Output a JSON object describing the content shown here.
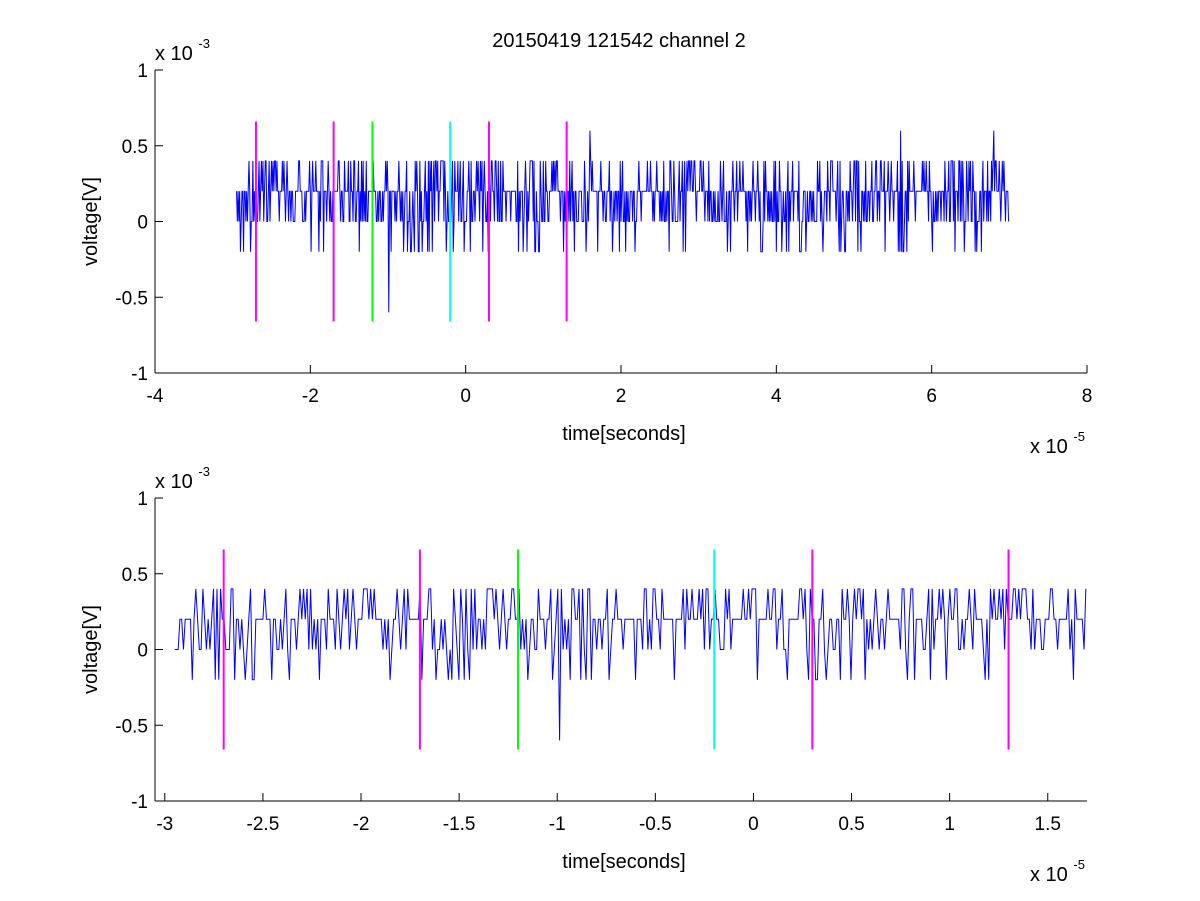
{
  "title": "20150419 121542 channel 2",
  "chart_data": [
    {
      "type": "line",
      "xlabel": "time[seconds]",
      "ylabel": "voltage[V]",
      "xlim": [
        -4e-05,
        8e-05
      ],
      "ylim": [
        -0.001,
        0.001
      ],
      "x_ticks": [
        -4e-05,
        -2e-05,
        0,
        2e-05,
        4e-05,
        6e-05,
        8e-05
      ],
      "x_tick_labels": [
        "-4",
        "-2",
        "0",
        "2",
        "4",
        "6",
        "8"
      ],
      "y_ticks": [
        0.001,
        0.0005,
        0,
        -0.0005,
        -0.001
      ],
      "y_tick_labels": [
        "1",
        "0.5",
        "0",
        "-0.5",
        "-1"
      ],
      "x_multiplier": {
        "base": "x 10",
        "exponent": "-5"
      },
      "y_multiplier": {
        "base": "x 10",
        "exponent": "-3"
      },
      "grid": false,
      "series": [
        {
          "color": "#0000ff",
          "x_start": -2.95e-05,
          "x_end": 7e-05,
          "levels_V": [
            0,
            0.0002,
            0.0004
          ],
          "max_V": 0.0006,
          "min_V": -0.0006
        }
      ],
      "markers": [
        {
          "x": -2.7e-05,
          "color": "#ff00ff",
          "y_range": [
            -0.00066,
            0.00066
          ]
        },
        {
          "x": -1.7e-05,
          "color": "#ff00ff",
          "y_range": [
            -0.00066,
            0.00066
          ]
        },
        {
          "x": -1.2e-05,
          "color": "#00ff00",
          "y_range": [
            -0.00066,
            0.00066
          ]
        },
        {
          "x": -2e-06,
          "color": "#00ffff",
          "y_range": [
            -0.00066,
            0.00066
          ]
        },
        {
          "x": 3e-06,
          "color": "#ff00ff",
          "y_range": [
            -0.00066,
            0.00066
          ]
        },
        {
          "x": 1.3e-05,
          "color": "#ff00ff",
          "y_range": [
            -0.00066,
            0.00066
          ]
        }
      ]
    },
    {
      "type": "line",
      "xlabel": "time[seconds]",
      "ylabel": "voltage[V]",
      "xlim": [
        -3.05e-05,
        1.7e-05
      ],
      "ylim": [
        -0.001,
        0.001
      ],
      "x_ticks": [
        -3e-05,
        -2.5e-05,
        -2e-05,
        -1.5e-05,
        -1e-05,
        -5e-06,
        0,
        5e-06,
        1e-05,
        1.5e-05
      ],
      "x_tick_labels": [
        "-3",
        "-2.5",
        "-2",
        "-1.5",
        "-1",
        "-0.5",
        "0",
        "0.5",
        "1",
        "1.5"
      ],
      "y_ticks": [
        0.001,
        0.0005,
        0,
        -0.0005,
        -0.001
      ],
      "y_tick_labels": [
        "1",
        "0.5",
        "0",
        "-0.5",
        "-1"
      ],
      "x_multiplier": {
        "base": "x 10",
        "exponent": "-5"
      },
      "y_multiplier": {
        "base": "x 10",
        "exponent": "-3"
      },
      "grid": false,
      "series": [
        {
          "color": "#0000ff",
          "x_start": -2.95e-05,
          "x_end": 1.7e-05,
          "levels_V": [
            0,
            0.0002,
            0.0004
          ],
          "max_V": 0.0004,
          "min_V": -0.0006
        }
      ],
      "markers": [
        {
          "x": -2.7e-05,
          "color": "#ff00ff",
          "y_range": [
            -0.00066,
            0.00066
          ]
        },
        {
          "x": -1.7e-05,
          "color": "#ff00ff",
          "y_range": [
            -0.00066,
            0.00066
          ]
        },
        {
          "x": -1.2e-05,
          "color": "#00ff00",
          "y_range": [
            -0.00066,
            0.00066
          ]
        },
        {
          "x": -2e-06,
          "color": "#00ffff",
          "y_range": [
            -0.00066,
            0.00066
          ]
        },
        {
          "x": 3e-06,
          "color": "#ff00ff",
          "y_range": [
            -0.00066,
            0.00066
          ]
        },
        {
          "x": 1.3e-05,
          "color": "#ff00ff",
          "y_range": [
            -0.00066,
            0.00066
          ]
        }
      ]
    }
  ]
}
